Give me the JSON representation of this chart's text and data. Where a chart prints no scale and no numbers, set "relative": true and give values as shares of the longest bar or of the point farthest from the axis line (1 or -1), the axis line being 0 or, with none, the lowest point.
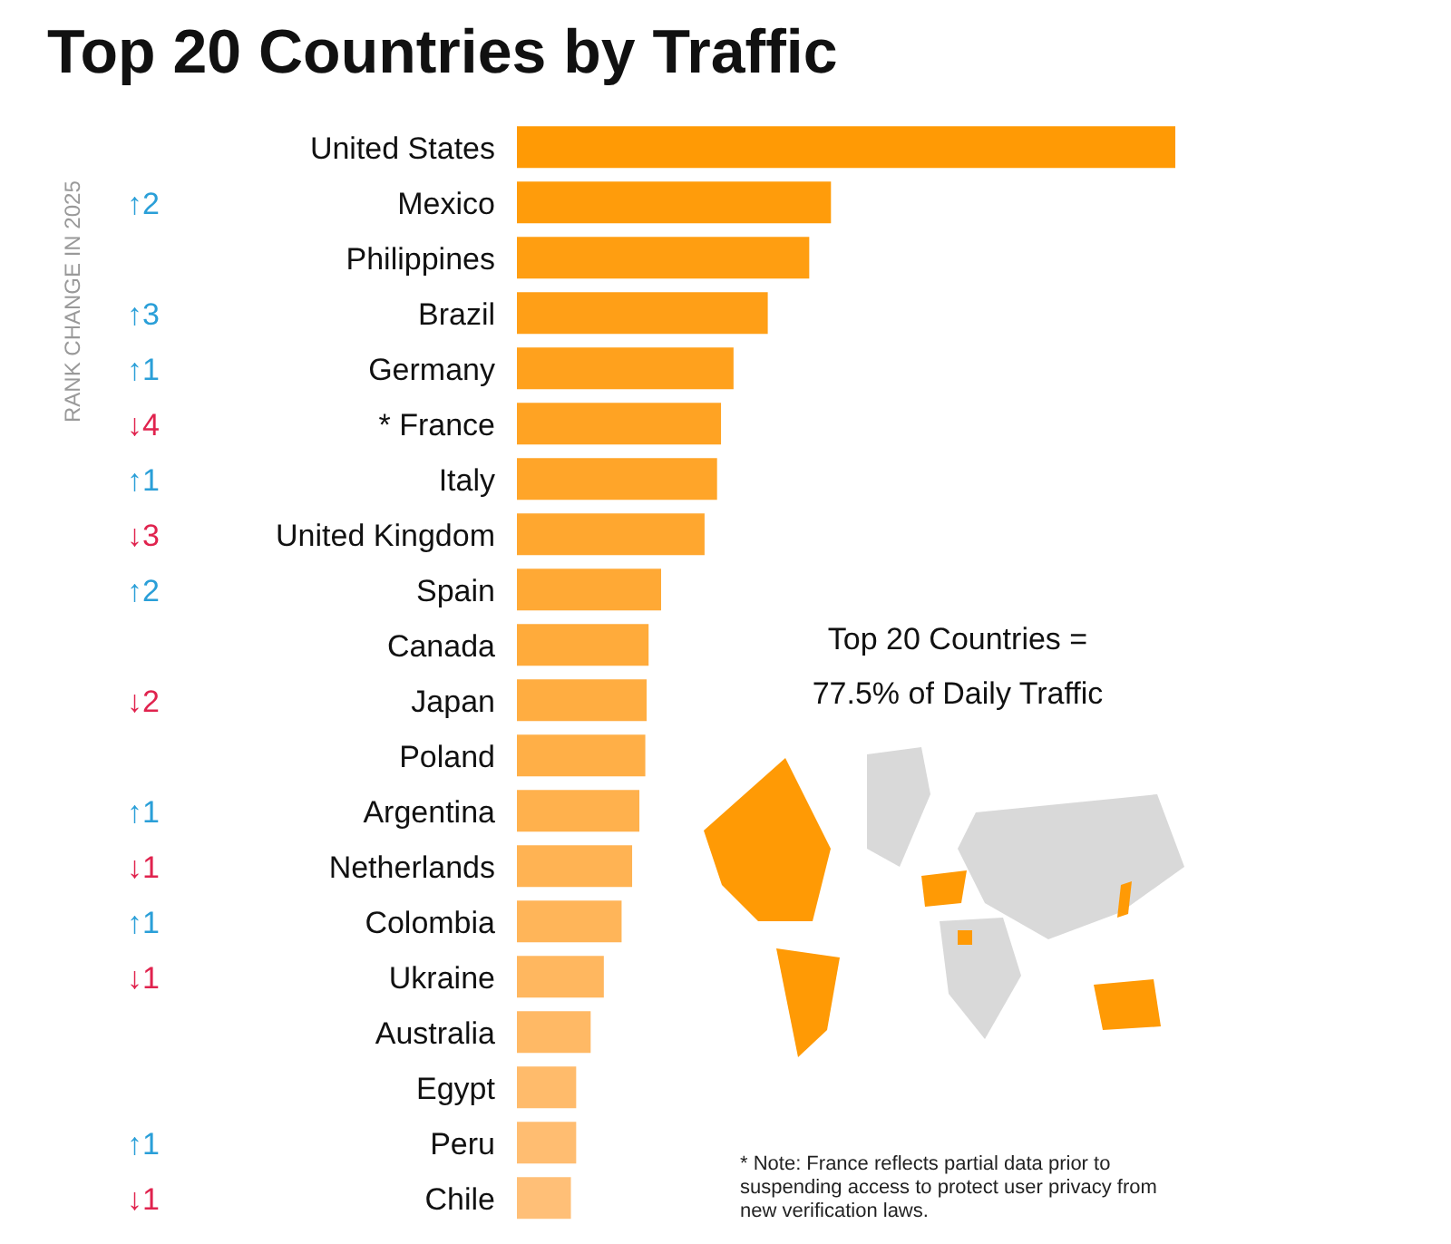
{
  "chart_data": {
    "type": "bar",
    "orientation": "horizontal",
    "relative": true,
    "title": "Top 20 Countries by Traffic",
    "categories": [
      "United States",
      "Mexico",
      "Philippines",
      "Brazil",
      "Germany",
      "* France",
      "Italy",
      "United Kingdom",
      "Spain",
      "Canada",
      "Japan",
      "Poland",
      "Argentina",
      "Netherlands",
      "Colombia",
      "Ukraine",
      "Australia",
      "Egypt",
      "Peru",
      "Chile"
    ],
    "values": [
      1,
      0.477,
      0.444,
      0.381,
      0.329,
      0.31,
      0.304,
      0.285,
      0.219,
      0.2,
      0.197,
      0.195,
      0.186,
      0.175,
      0.159,
      0.132,
      0.112,
      0.09,
      0.09,
      0.082
    ],
    "colors": [
      "#ff9a05",
      "#ff9c0b",
      "#ff9e11",
      "#ff9f17",
      "#ffa11d",
      "#ffa323",
      "#ffa529",
      "#ffa72f",
      "#ffa935",
      "#ffab3b",
      "#ffad41",
      "#ffaf47",
      "#ffb14d",
      "#ffb353",
      "#ffb559",
      "#ffb75f",
      "#ffb965",
      "#ffbb6b",
      "#ffbd71",
      "#ffbf77"
    ],
    "annotations": [
      "RANK CHANGE IN 2025",
      "↑2",
      "↑3",
      "↑1",
      "↓4",
      "↑1",
      "↓3",
      "↑2",
      "↓2",
      "↑1",
      "↓1",
      "↑1",
      "↓1",
      "↑1",
      "↓1",
      "Top 20 Countries =",
      "77.5% of Daily Traffic",
      "* Note: France reflects partial data prior to suspending access to protect user privacy from new verification laws."
    ]
  }
}
